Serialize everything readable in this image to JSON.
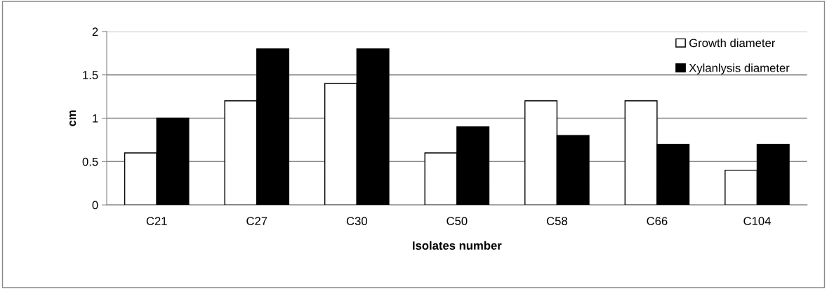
{
  "chart_data": {
    "type": "bar",
    "xlabel": "Isolates number",
    "ylabel": "cm",
    "categories": [
      "C21",
      "C27",
      "C30",
      "C50",
      "C58",
      "C66",
      "C104"
    ],
    "series": [
      {
        "name": "Growth diameter",
        "color": "#ffffff",
        "values": [
          0.6,
          1.2,
          1.4,
          0.6,
          1.2,
          1.2,
          0.4
        ]
      },
      {
        "name": "Xylanlysis diameter",
        "color": "#000000",
        "values": [
          1.0,
          1.8,
          1.8,
          0.9,
          0.8,
          0.7,
          0.7
        ]
      }
    ],
    "ylim": [
      0,
      2
    ],
    "yticks": [
      0,
      0.5,
      1,
      1.5,
      2
    ],
    "grid": "y",
    "legend": "top right"
  }
}
